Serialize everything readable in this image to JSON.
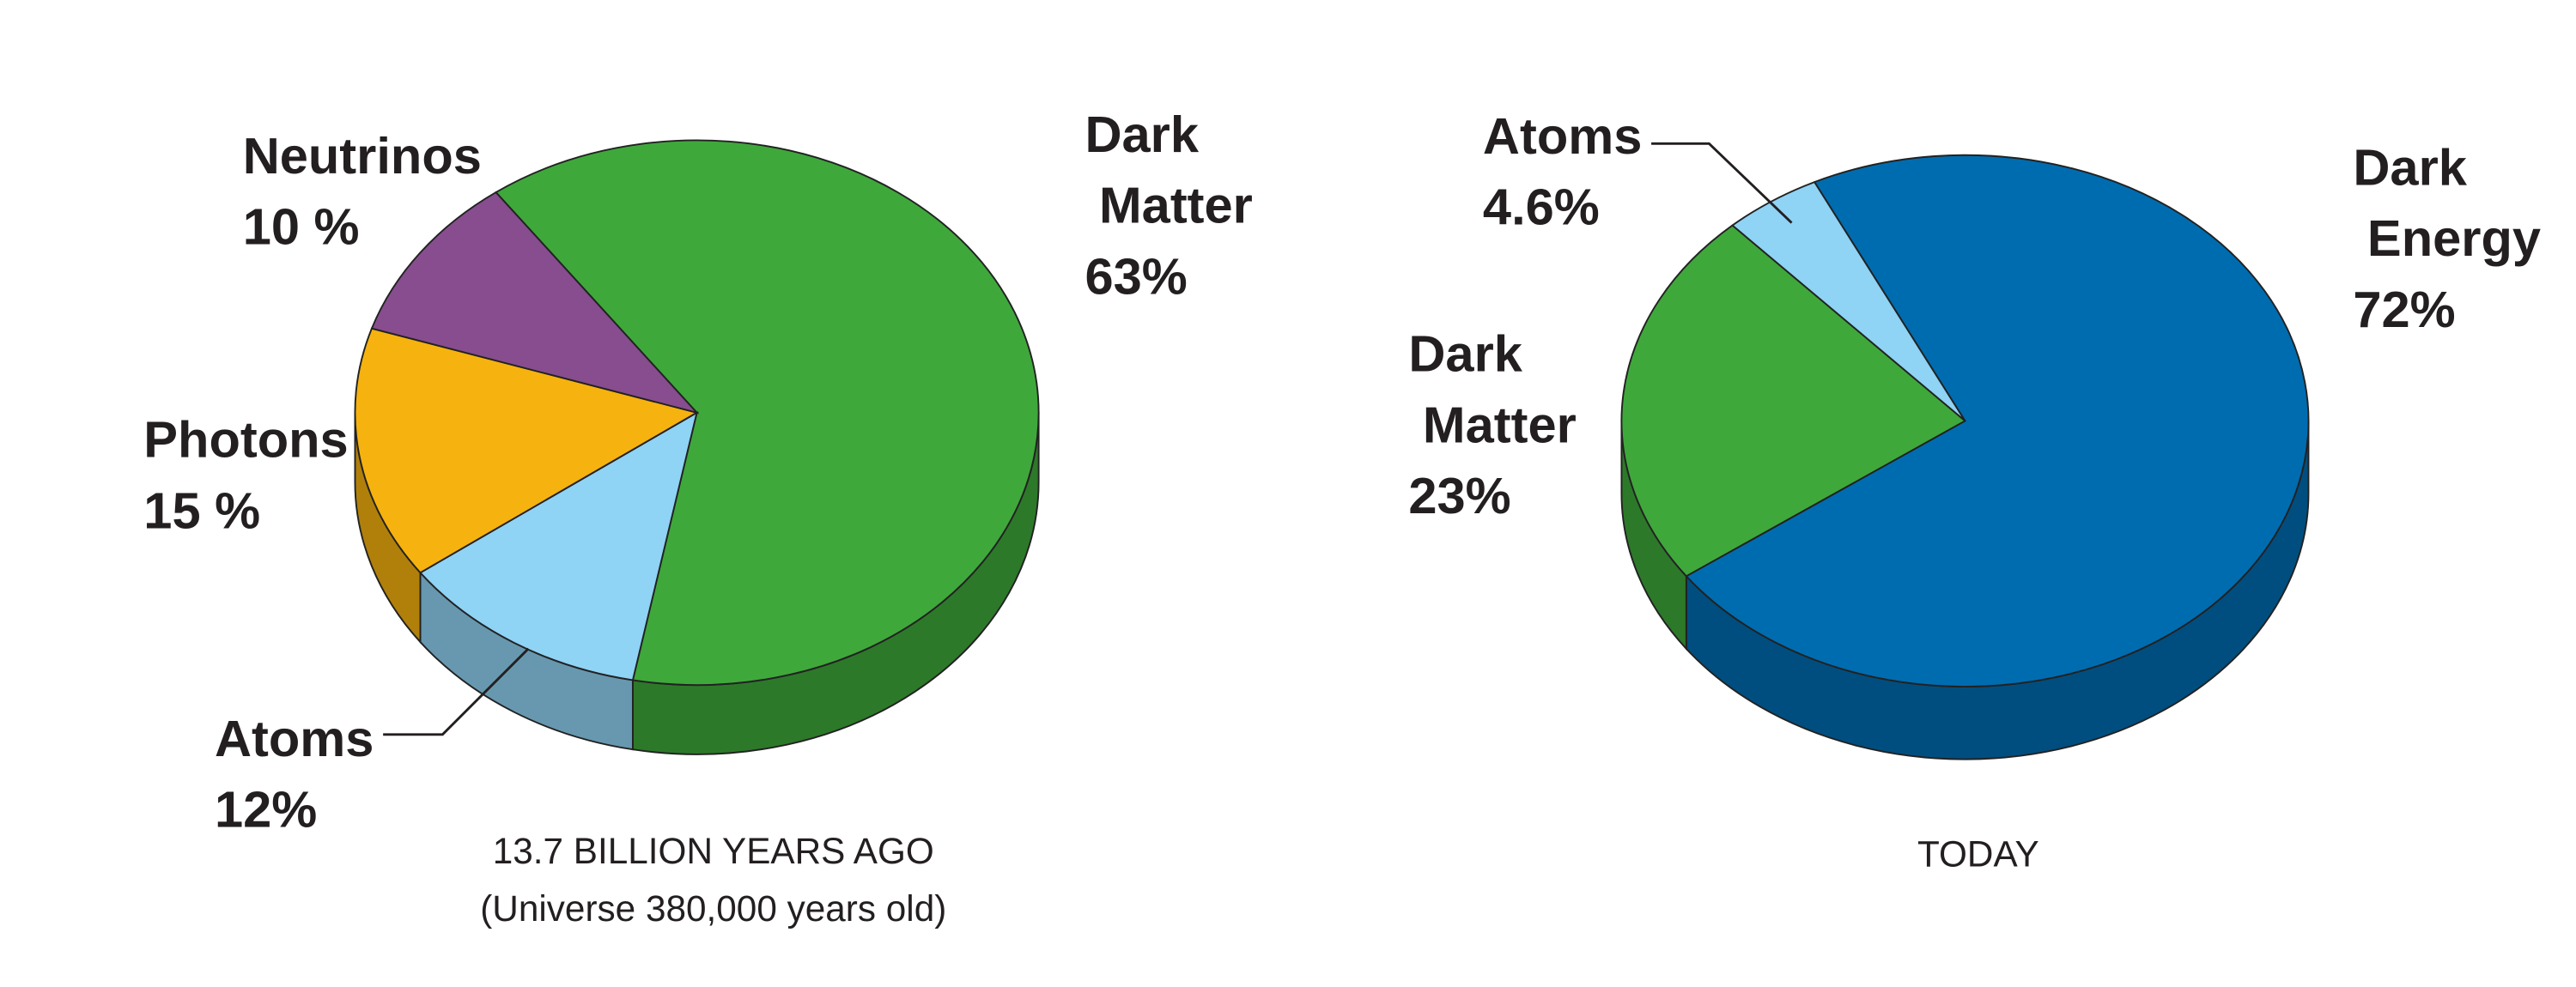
{
  "chart_data": [
    {
      "type": "pie",
      "title": "13.7 BILLION YEARS AGO",
      "subtitle": "(Universe 380,000 years old)",
      "categories": [
        "Dark Matter",
        "Atoms",
        "Photons",
        "Neutrinos"
      ],
      "values": [
        63,
        12,
        15,
        10
      ],
      "value_labels": [
        "63%",
        "12%",
        "15 %",
        "10 %"
      ],
      "colors": [
        "#3fa83b",
        "#8fd3f5",
        "#f6b20e",
        "#874d8f"
      ]
    },
    {
      "type": "pie",
      "title": "TODAY",
      "categories": [
        "Dark Energy",
        "Dark Matter",
        "Atoms"
      ],
      "values": [
        72,
        23,
        4.6
      ],
      "value_labels": [
        "72%",
        "23%",
        "4.6%"
      ],
      "colors": [
        "#006cb0",
        "#3fa83b",
        "#8fd3f5"
      ]
    }
  ]
}
